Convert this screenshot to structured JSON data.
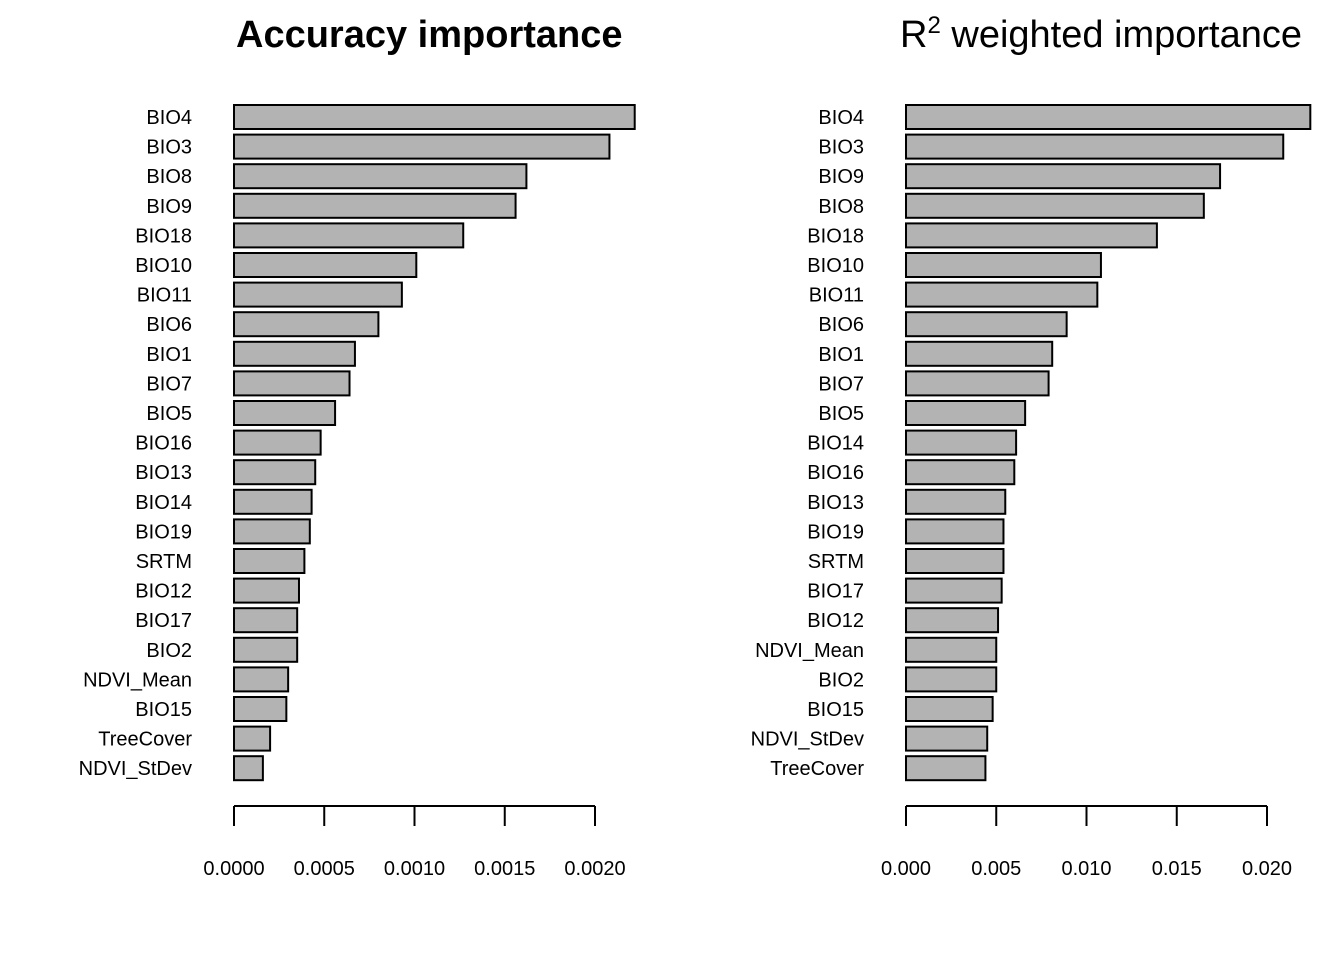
{
  "chart_data": [
    {
      "type": "bar",
      "orientation": "horizontal",
      "title": "Accuracy importance",
      "title_weight": "bold",
      "categories": [
        "BIO4",
        "BIO3",
        "BIO8",
        "BIO9",
        "BIO18",
        "BIO10",
        "BIO11",
        "BIO6",
        "BIO1",
        "BIO7",
        "BIO5",
        "BIO16",
        "BIO13",
        "BIO14",
        "BIO19",
        "SRTM",
        "BIO12",
        "BIO17",
        "BIO2",
        "NDVI_Mean",
        "BIO15",
        "TreeCover",
        "NDVI_StDev"
      ],
      "values": [
        0.00222,
        0.00208,
        0.00162,
        0.00156,
        0.00127,
        0.00101,
        0.00093,
        0.0008,
        0.00067,
        0.00064,
        0.00056,
        0.00048,
        0.00045,
        0.00043,
        0.00042,
        0.00039,
        0.00036,
        0.00035,
        0.00035,
        0.0003,
        0.00029,
        0.0002,
        0.00016
      ],
      "xlim": [
        0,
        0.0022
      ],
      "ticks": [
        0,
        0.0005,
        0.001,
        0.0015,
        0.002
      ],
      "tick_labels": [
        "0.0000",
        "0.0005",
        "0.0010",
        "0.0015",
        "0.0020"
      ],
      "bar_color": "#b3b3b3",
      "border_color": "#000000",
      "grid": false,
      "legend": "none"
    },
    {
      "type": "bar",
      "orientation": "horizontal",
      "title": "R",
      "title_superscript": "2",
      "title_suffix": " weighted importance",
      "title_weight": "normal",
      "categories": [
        "BIO4",
        "BIO3",
        "BIO9",
        "BIO8",
        "BIO18",
        "BIO10",
        "BIO11",
        "BIO6",
        "BIO1",
        "BIO7",
        "BIO5",
        "BIO14",
        "BIO16",
        "BIO13",
        "BIO19",
        "SRTM",
        "BIO17",
        "BIO12",
        "NDVI_Mean",
        "BIO2",
        "BIO15",
        "NDVI_StDev",
        "TreeCover"
      ],
      "values": [
        0.0224,
        0.0209,
        0.0174,
        0.0165,
        0.0139,
        0.0108,
        0.0106,
        0.0089,
        0.0081,
        0.0079,
        0.0066,
        0.0061,
        0.006,
        0.0055,
        0.0054,
        0.0054,
        0.0053,
        0.0051,
        0.005,
        0.005,
        0.0048,
        0.0045,
        0.0044
      ],
      "xlim": [
        0,
        0.022
      ],
      "ticks": [
        0,
        0.005,
        0.01,
        0.015,
        0.02
      ],
      "tick_labels": [
        "0.000",
        "0.005",
        "0.010",
        "0.015",
        "0.020"
      ],
      "bar_color": "#b3b3b3",
      "border_color": "#000000",
      "grid": false,
      "legend": "none"
    }
  ]
}
